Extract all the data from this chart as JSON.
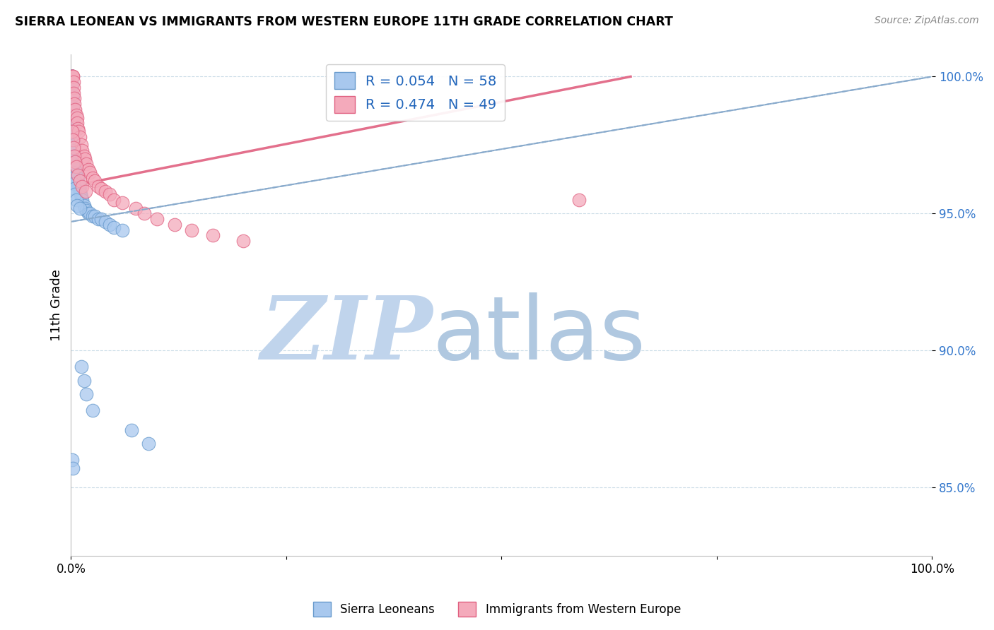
{
  "title": "SIERRA LEONEAN VS IMMIGRANTS FROM WESTERN EUROPE 11TH GRADE CORRELATION CHART",
  "source": "Source: ZipAtlas.com",
  "xlabel": "",
  "ylabel": "11th Grade",
  "r_blue": 0.054,
  "n_blue": 58,
  "r_pink": 0.474,
  "n_pink": 49,
  "blue_color": "#A8C8EE",
  "pink_color": "#F4AABB",
  "blue_edge_color": "#6699CC",
  "pink_edge_color": "#E06080",
  "blue_line_color": "#88AACC",
  "pink_line_color": "#E06080",
  "xmin": 0.0,
  "xmax": 1.0,
  "ymin": 0.825,
  "ymax": 1.008,
  "yticks": [
    0.85,
    0.9,
    0.95,
    1.0
  ],
  "ytick_labels": [
    "85.0%",
    "90.0%",
    "95.0%",
    "100.0%"
  ],
  "xticks": [
    0.0,
    0.25,
    0.5,
    0.75,
    1.0
  ],
  "xtick_labels": [
    "0.0%",
    "",
    "",
    "",
    "100.0%"
  ],
  "watermark_zip": "ZIP",
  "watermark_atlas": "atlas",
  "watermark_color_zip": "#C0D4EC",
  "watermark_color_atlas": "#B0C8E0",
  "blue_scatter_x": [
    0.001,
    0.001,
    0.001,
    0.001,
    0.001,
    0.002,
    0.002,
    0.002,
    0.003,
    0.003,
    0.003,
    0.004,
    0.004,
    0.004,
    0.005,
    0.005,
    0.006,
    0.006,
    0.007,
    0.008,
    0.008,
    0.009,
    0.01,
    0.01,
    0.011,
    0.012,
    0.013,
    0.015,
    0.016,
    0.018,
    0.02,
    0.022,
    0.025,
    0.028,
    0.032,
    0.035,
    0.04,
    0.045,
    0.05,
    0.06,
    0.001,
    0.002,
    0.002,
    0.003,
    0.003,
    0.004,
    0.005,
    0.006,
    0.007,
    0.01,
    0.012,
    0.015,
    0.018,
    0.025,
    0.07,
    0.09,
    0.001,
    0.002
  ],
  "blue_scatter_y": [
    1.0,
    1.0,
    1.0,
    1.0,
    0.997,
    0.993,
    0.989,
    0.985,
    0.983,
    0.98,
    0.977,
    0.975,
    0.973,
    0.971,
    0.971,
    0.969,
    0.968,
    0.966,
    0.965,
    0.963,
    0.961,
    0.96,
    0.96,
    0.958,
    0.957,
    0.956,
    0.955,
    0.953,
    0.952,
    0.951,
    0.95,
    0.95,
    0.949,
    0.949,
    0.948,
    0.948,
    0.947,
    0.946,
    0.945,
    0.944,
    0.97,
    0.968,
    0.965,
    0.963,
    0.961,
    0.959,
    0.957,
    0.955,
    0.953,
    0.952,
    0.894,
    0.889,
    0.884,
    0.878,
    0.871,
    0.866,
    0.86,
    0.857
  ],
  "pink_scatter_x": [
    0.001,
    0.001,
    0.002,
    0.002,
    0.003,
    0.003,
    0.003,
    0.004,
    0.004,
    0.005,
    0.006,
    0.007,
    0.007,
    0.008,
    0.009,
    0.01,
    0.012,
    0.013,
    0.015,
    0.016,
    0.018,
    0.02,
    0.022,
    0.025,
    0.028,
    0.032,
    0.035,
    0.04,
    0.045,
    0.05,
    0.06,
    0.075,
    0.085,
    0.1,
    0.12,
    0.14,
    0.165,
    0.2,
    0.001,
    0.002,
    0.003,
    0.004,
    0.005,
    0.006,
    0.008,
    0.01,
    0.013,
    0.017,
    0.59
  ],
  "pink_scatter_y": [
    1.0,
    1.0,
    1.0,
    1.0,
    0.998,
    0.996,
    0.994,
    0.992,
    0.99,
    0.988,
    0.986,
    0.985,
    0.983,
    0.981,
    0.98,
    0.978,
    0.975,
    0.973,
    0.971,
    0.97,
    0.968,
    0.966,
    0.965,
    0.963,
    0.962,
    0.96,
    0.959,
    0.958,
    0.957,
    0.955,
    0.954,
    0.952,
    0.95,
    0.948,
    0.946,
    0.944,
    0.942,
    0.94,
    0.98,
    0.977,
    0.974,
    0.971,
    0.969,
    0.967,
    0.964,
    0.962,
    0.96,
    0.958,
    0.955
  ],
  "trend_blue_x0": 0.0,
  "trend_blue_y0": 0.947,
  "trend_blue_x1": 1.0,
  "trend_blue_y1": 1.0,
  "trend_pink_x0": 0.0,
  "trend_pink_y0": 0.96,
  "trend_pink_x1": 0.65,
  "trend_pink_y1": 1.0
}
